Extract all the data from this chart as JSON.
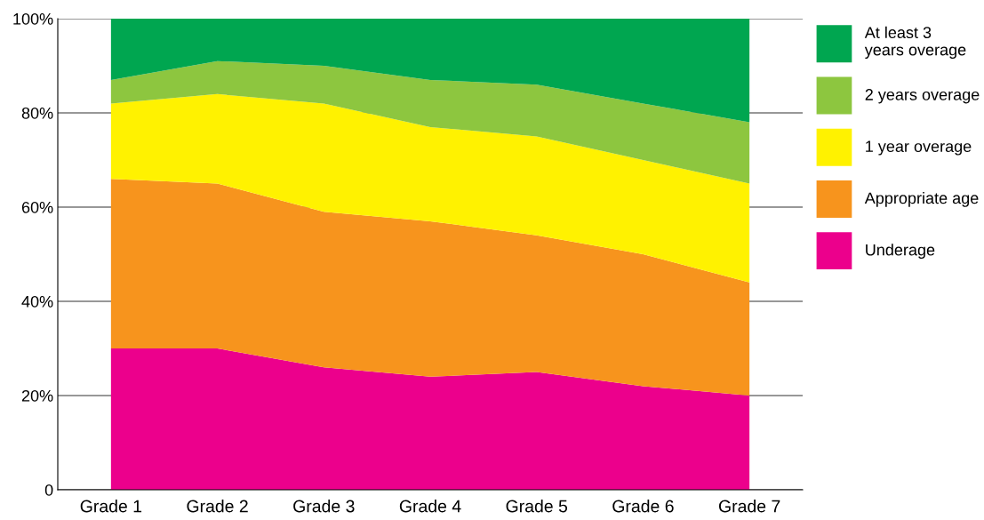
{
  "chart_data": {
    "type": "area",
    "stacked": true,
    "categories": [
      "Grade 1",
      "Grade 2",
      "Grade 3",
      "Grade 4",
      "Grade 5",
      "Grade 6",
      "Grade 7"
    ],
    "series": [
      {
        "name": "Underage",
        "color": "#ec008c",
        "values": [
          30,
          30,
          26,
          24,
          25,
          22,
          20
        ]
      },
      {
        "name": "Appropriate age",
        "color": "#f7941d",
        "values": [
          36,
          35,
          33,
          33,
          29,
          28,
          24
        ]
      },
      {
        "name": "1 year overage",
        "color": "#fff200",
        "values": [
          16,
          19,
          23,
          20,
          21,
          20,
          21
        ]
      },
      {
        "name": "2 years overage",
        "color": "#8dc63f",
        "values": [
          5,
          7,
          8,
          10,
          11,
          12,
          13
        ]
      },
      {
        "name": "At least 3\nyears overage",
        "color": "#00a650",
        "values": [
          13,
          9,
          10,
          13,
          14,
          18,
          22
        ]
      }
    ],
    "ylim": [
      0,
      100
    ],
    "yticks": [
      0,
      {
        "value": 20,
        "label": "20%"
      },
      {
        "value": 40,
        "label": "40%"
      },
      {
        "value": 60,
        "label": "60%"
      },
      {
        "value": 80,
        "label": "80%"
      },
      {
        "value": 100,
        "label": "100%"
      }
    ],
    "grid": "y",
    "legend": "right"
  }
}
